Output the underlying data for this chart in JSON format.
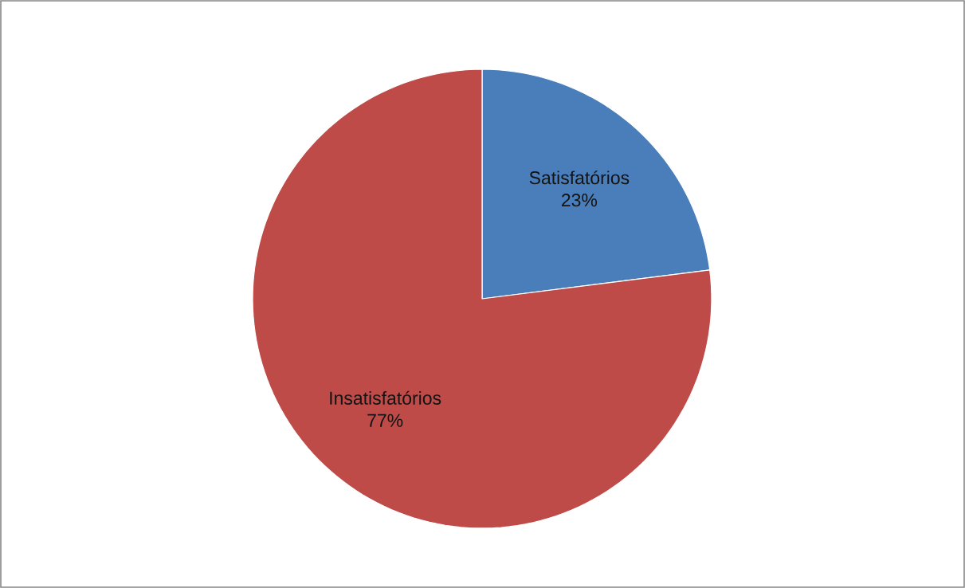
{
  "chart_data": {
    "type": "pie",
    "categories": [
      "Satisfatórios",
      "Insatisfatórios"
    ],
    "values": [
      23,
      77
    ],
    "colors": [
      "#4a7ebb",
      "#be4b48"
    ],
    "value_labels": [
      "23%",
      "77%"
    ]
  }
}
